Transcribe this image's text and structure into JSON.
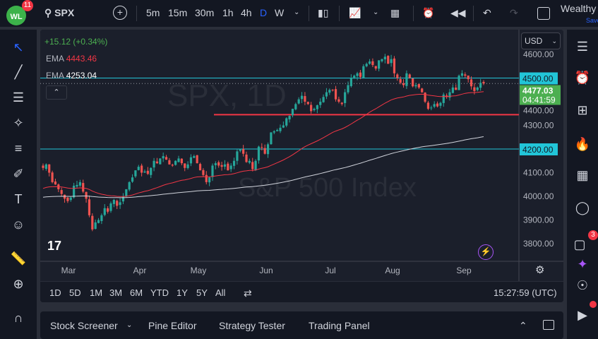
{
  "header": {
    "logo_badge": "11",
    "symbol": "SPX",
    "intervals": [
      "5m",
      "15m",
      "30m",
      "1h",
      "4h",
      "D",
      "W"
    ],
    "active_interval": "D",
    "account": "Wealthy",
    "save_label": "Save"
  },
  "legend": {
    "change": "+15.12 (+0.34%)",
    "ema1_label": "EMA",
    "ema1_value": "4443.46",
    "ema2_label": "EMA",
    "ema2_value": "4253.04"
  },
  "watermark": {
    "symbol": "SPX, 1D",
    "name": "S&P 500 Index"
  },
  "currency": "USD",
  "price_axis": {
    "ticks": [
      "4600.00",
      "4500.00",
      "4400.00",
      "4300.00",
      "4200.00",
      "4100.00",
      "4000.00",
      "3900.00",
      "3800.00"
    ],
    "current_price": "4477.03",
    "countdown": "04:41:59",
    "level_labels": [
      "4500.00",
      "4200.00"
    ]
  },
  "time_axis": {
    "labels": [
      "Mar",
      "Apr",
      "May",
      "Jun",
      "Jul",
      "Aug",
      "Sep"
    ]
  },
  "ranges": [
    "1D",
    "5D",
    "1M",
    "3M",
    "6M",
    "YTD",
    "1Y",
    "5Y",
    "All"
  ],
  "clock": "15:27:59 (UTC)",
  "bottom_tabs": [
    "Stock Screener",
    "Pine Editor",
    "Strategy Tester",
    "Trading Panel"
  ],
  "right_badge": "3",
  "colors": {
    "up": "#26a69a",
    "down": "#ef5350",
    "ema50": "#f23645",
    "ema200": "#d1d4dc",
    "level": "#22c5d8",
    "support": "#f23645",
    "price_tag": "#4caf50"
  },
  "chart_data": {
    "type": "candlestick",
    "ylim": [
      3760,
      4660
    ],
    "closes": [
      4120,
      4135,
      4100,
      4060,
      4050,
      4030,
      4010,
      3990,
      3980,
      3995,
      4045,
      4048,
      4060,
      4020,
      3990,
      3920,
      3860,
      3890,
      3900,
      3920,
      3950,
      3935,
      3970,
      3985,
      3960,
      3975,
      4000,
      4030,
      4060,
      4080,
      4110,
      4125,
      4100,
      4105,
      4095,
      4120,
      4150,
      4140,
      4160,
      4170,
      4155,
      4135,
      4130,
      4150,
      4160,
      4140,
      4120,
      4135,
      4165,
      4170,
      4140,
      4110,
      4090,
      4060,
      4080,
      4130,
      4140,
      4130,
      4125,
      4135,
      4110,
      4130,
      4150,
      4190,
      4200,
      4180,
      4145,
      4150,
      4115,
      4150,
      4210,
      4205,
      4180,
      4220,
      4270,
      4275,
      4280,
      4290,
      4300,
      4330,
      4340,
      4370,
      4390,
      4410,
      4425,
      4400,
      4390,
      4360,
      4370,
      4385,
      4400,
      4420,
      4440,
      4450,
      4450,
      4410,
      4400,
      4390,
      4440,
      4470,
      4500,
      4510,
      4520,
      4505,
      4550,
      4560,
      4570,
      4555,
      4540,
      4575,
      4580,
      4590,
      4560,
      4580,
      4520,
      4500,
      4480,
      4470,
      4520,
      4500,
      4465,
      4470,
      4460,
      4440,
      4400,
      4370,
      4375,
      4390,
      4380,
      4395,
      4430,
      4420,
      4440,
      4460,
      4450,
      4510,
      4520,
      4510,
      4495,
      4465,
      4445,
      4460,
      4480,
      4477
    ],
    "levels": [
      4500,
      4200
    ],
    "support": 4345,
    "current": 4477.03,
    "ema_periods": [
      50,
      200
    ]
  }
}
